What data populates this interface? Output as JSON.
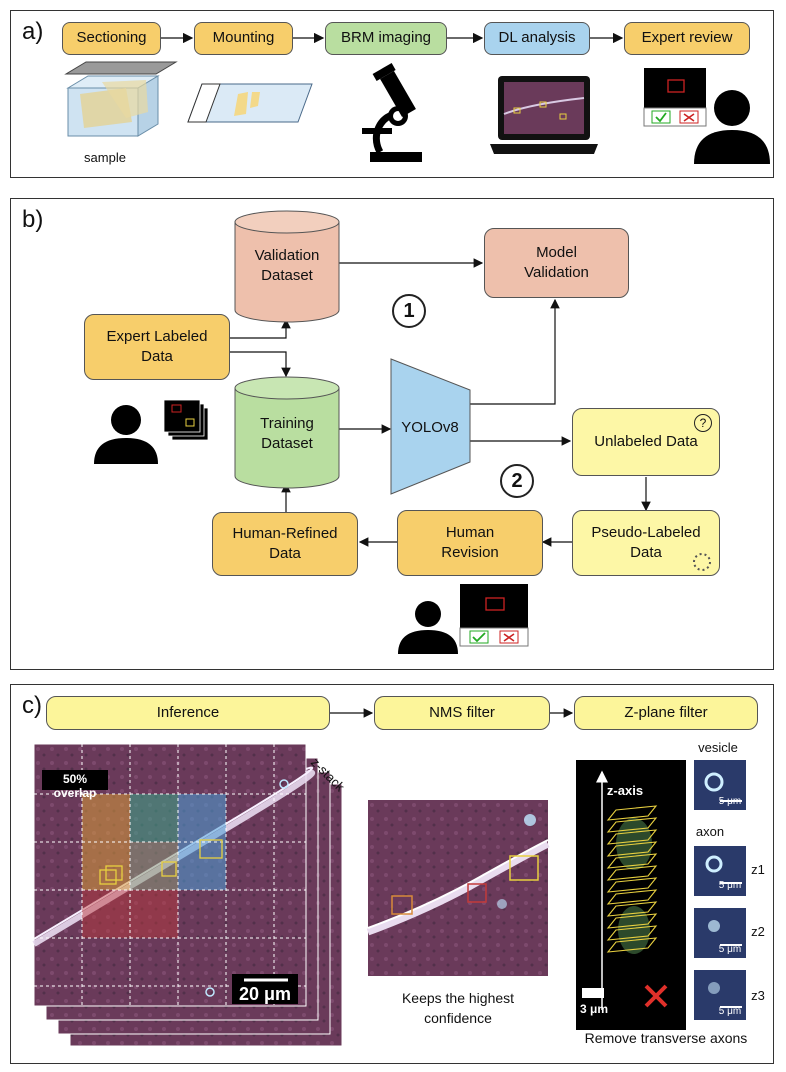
{
  "panel_a": {
    "label": "a)",
    "steps": [
      "Sectioning",
      "Mounting",
      "BRM imaging",
      "DL analysis",
      "Expert review"
    ],
    "sample_caption": "sample"
  },
  "panel_b": {
    "label": "b)",
    "validation_dataset": "Validation\nDataset",
    "model_validation": "Model\nValidation",
    "expert_labeled": "Expert  Labeled\nData",
    "training_dataset": "Training\nDataset",
    "yolo": "YOLOv8",
    "unlabeled": "Unlabeled Data",
    "pseudo_labeled": "Pseudo-Labeled\nData",
    "human_revision": "Human\nRevision",
    "human_refined": "Human-Refined\nData",
    "loop1": "1",
    "loop2": "2",
    "question_mark": "?"
  },
  "panel_c": {
    "label": "c)",
    "steps": [
      "Inference",
      "NMS filter",
      "Z-plane filter"
    ],
    "overlap_label": "50% overlap",
    "zstack_label": "z-stack",
    "scalebar_main": "20 μm",
    "nms_caption": "Keeps the highest\nconfidence",
    "zaxis_label": "z-axis",
    "scalebar_z": "3 μm",
    "zfilter_caption": "Remove transverse axons",
    "vesicle_label": "vesicle",
    "axon_label": "axon",
    "small_scalebar": "5 μm",
    "z_labels": [
      "z1",
      "z2",
      "z3"
    ]
  },
  "colors": {
    "orange": "#f7ce6b",
    "green": "#b9dea0",
    "blue": "#a9d3ee",
    "salmon": "#eec0ac",
    "yellow_light": "#fdf7a6",
    "tissue": "#6a3a5a"
  }
}
